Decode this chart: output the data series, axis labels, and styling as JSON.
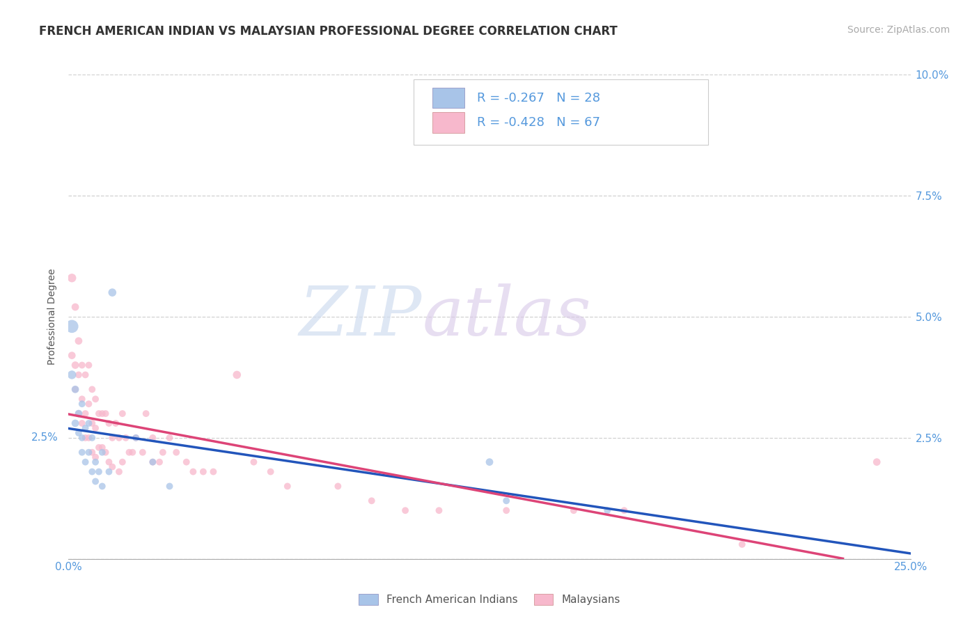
{
  "title": "FRENCH AMERICAN INDIAN VS MALAYSIAN PROFESSIONAL DEGREE CORRELATION CHART",
  "source": "Source: ZipAtlas.com",
  "ylabel": "Professional Degree",
  "xlim": [
    0.0,
    0.25
  ],
  "ylim": [
    0.0,
    0.1
  ],
  "xticks": [
    0.0,
    0.05,
    0.1,
    0.15,
    0.2,
    0.25
  ],
  "xtick_labels": [
    "0.0%",
    "",
    "",
    "",
    "",
    "25.0%"
  ],
  "yticks": [
    0.0,
    0.025,
    0.05,
    0.075,
    0.1
  ],
  "ytick_labels_left": [
    "",
    "2.5%",
    "5.0%",
    "7.5%",
    "10.0%"
  ],
  "ytick_labels_right": [
    "",
    "2.5%",
    "5.0%",
    "7.5%",
    "10.0%"
  ],
  "legend_r1": "-0.267",
  "legend_n1": "28",
  "legend_r2": "-0.428",
  "legend_n2": "67",
  "label1": "French American Indians",
  "label2": "Malaysians",
  "color1": "#a8c4e8",
  "color2": "#f7b8cc",
  "line_color1": "#2255bb",
  "line_color2": "#dd4477",
  "watermark_zip": "ZIP",
  "watermark_atlas": "atlas",
  "background_color": "#ffffff",
  "grid_color": "#cccccc",
  "tick_label_color": "#5599dd",
  "title_fontsize": 12,
  "axis_label_fontsize": 10,
  "tick_fontsize": 11,
  "legend_fontsize": 13,
  "source_fontsize": 10,
  "fai_x": [
    0.001,
    0.001,
    0.002,
    0.002,
    0.003,
    0.003,
    0.004,
    0.004,
    0.004,
    0.005,
    0.005,
    0.006,
    0.006,
    0.007,
    0.007,
    0.008,
    0.008,
    0.009,
    0.01,
    0.01,
    0.012,
    0.013,
    0.02,
    0.025,
    0.03,
    0.125,
    0.13,
    0.16
  ],
  "fai_y": [
    0.048,
    0.038,
    0.035,
    0.028,
    0.03,
    0.026,
    0.032,
    0.025,
    0.022,
    0.027,
    0.02,
    0.028,
    0.022,
    0.025,
    0.018,
    0.02,
    0.016,
    0.018,
    0.022,
    0.015,
    0.018,
    0.055,
    0.025,
    0.02,
    0.015,
    0.02,
    0.012,
    0.01
  ],
  "mal_x": [
    0.001,
    0.001,
    0.002,
    0.002,
    0.002,
    0.003,
    0.003,
    0.003,
    0.004,
    0.004,
    0.004,
    0.005,
    0.005,
    0.005,
    0.006,
    0.006,
    0.006,
    0.007,
    0.007,
    0.007,
    0.008,
    0.008,
    0.008,
    0.009,
    0.009,
    0.01,
    0.01,
    0.011,
    0.011,
    0.012,
    0.012,
    0.013,
    0.013,
    0.014,
    0.015,
    0.015,
    0.016,
    0.016,
    0.017,
    0.018,
    0.019,
    0.02,
    0.022,
    0.023,
    0.025,
    0.025,
    0.027,
    0.028,
    0.03,
    0.032,
    0.035,
    0.037,
    0.04,
    0.043,
    0.05,
    0.055,
    0.06,
    0.065,
    0.08,
    0.09,
    0.1,
    0.11,
    0.13,
    0.15,
    0.165,
    0.2,
    0.24
  ],
  "mal_y": [
    0.058,
    0.042,
    0.052,
    0.04,
    0.035,
    0.045,
    0.038,
    0.03,
    0.04,
    0.033,
    0.028,
    0.038,
    0.03,
    0.025,
    0.04,
    0.032,
    0.025,
    0.035,
    0.028,
    0.022,
    0.033,
    0.027,
    0.021,
    0.03,
    0.023,
    0.03,
    0.023,
    0.03,
    0.022,
    0.028,
    0.02,
    0.025,
    0.019,
    0.028,
    0.025,
    0.018,
    0.03,
    0.02,
    0.025,
    0.022,
    0.022,
    0.025,
    0.022,
    0.03,
    0.02,
    0.025,
    0.02,
    0.022,
    0.025,
    0.022,
    0.02,
    0.018,
    0.018,
    0.018,
    0.038,
    0.02,
    0.018,
    0.015,
    0.015,
    0.012,
    0.01,
    0.01,
    0.01,
    0.01,
    0.01,
    0.003,
    0.02
  ],
  "fai_sizes": [
    180,
    80,
    60,
    60,
    60,
    50,
    50,
    50,
    50,
    50,
    50,
    50,
    50,
    50,
    50,
    50,
    50,
    50,
    50,
    50,
    50,
    70,
    50,
    50,
    50,
    60,
    50,
    50
  ],
  "mal_sizes": [
    80,
    60,
    60,
    60,
    50,
    60,
    50,
    50,
    50,
    50,
    50,
    50,
    50,
    50,
    50,
    50,
    50,
    50,
    50,
    50,
    50,
    50,
    50,
    50,
    50,
    50,
    50,
    50,
    50,
    50,
    50,
    50,
    50,
    50,
    50,
    50,
    50,
    50,
    50,
    50,
    50,
    50,
    50,
    50,
    50,
    50,
    50,
    50,
    50,
    50,
    50,
    50,
    50,
    50,
    70,
    50,
    50,
    50,
    50,
    50,
    50,
    50,
    50,
    50,
    50,
    50,
    60
  ]
}
